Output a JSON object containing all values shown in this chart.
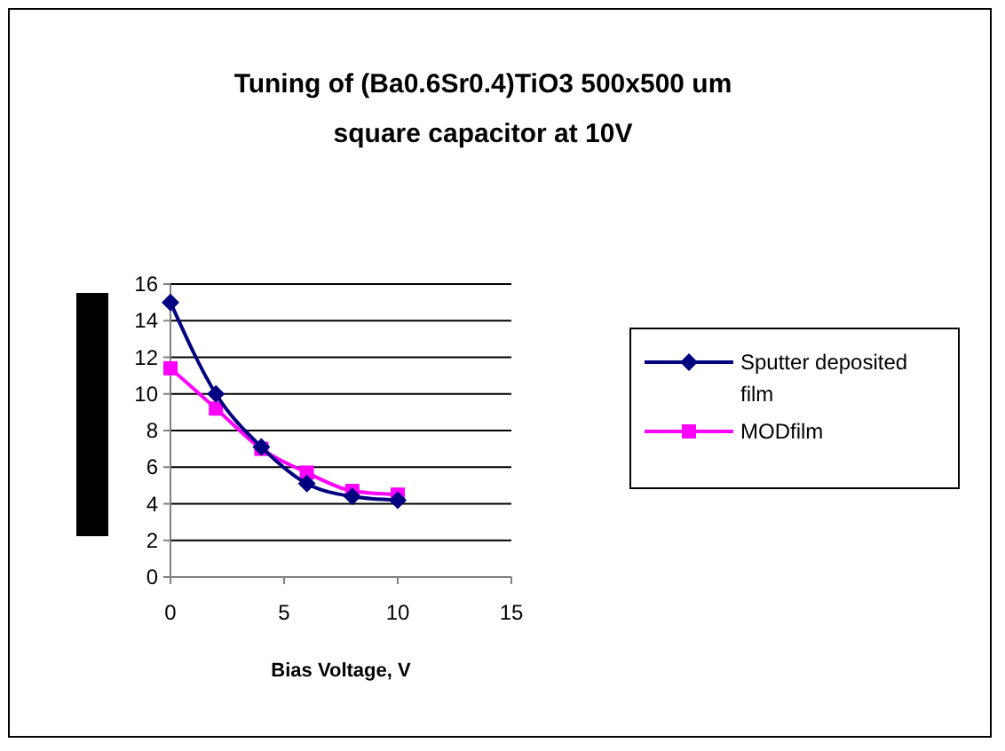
{
  "chart_data": {
    "type": "line",
    "title": "Tuning of (Ba0.6Sr0.4)TiO3 500x500 um\nsquare capacitor at 10V",
    "xlabel": "Bias Voltage, V",
    "x": [
      0,
      2,
      4,
      6,
      8,
      10
    ],
    "series": [
      {
        "name": "Sputter deposited film",
        "color": "#000080",
        "marker": "diamond",
        "values": [
          15,
          10,
          7.1,
          5.1,
          4.4,
          4.2
        ]
      },
      {
        "name": "MODfilm",
        "color": "#ff00ff",
        "marker": "square",
        "values": [
          11.4,
          9.2,
          7.0,
          5.7,
          4.7,
          4.5
        ]
      }
    ],
    "xlim": [
      0,
      15
    ],
    "xticks": [
      0,
      5,
      10,
      15
    ],
    "ylim": [
      0,
      16
    ],
    "yticks": [
      0,
      2,
      4,
      6,
      8,
      10,
      12,
      14,
      16
    ],
    "grid": "y",
    "legend": "right",
    "line_style": "solid"
  }
}
